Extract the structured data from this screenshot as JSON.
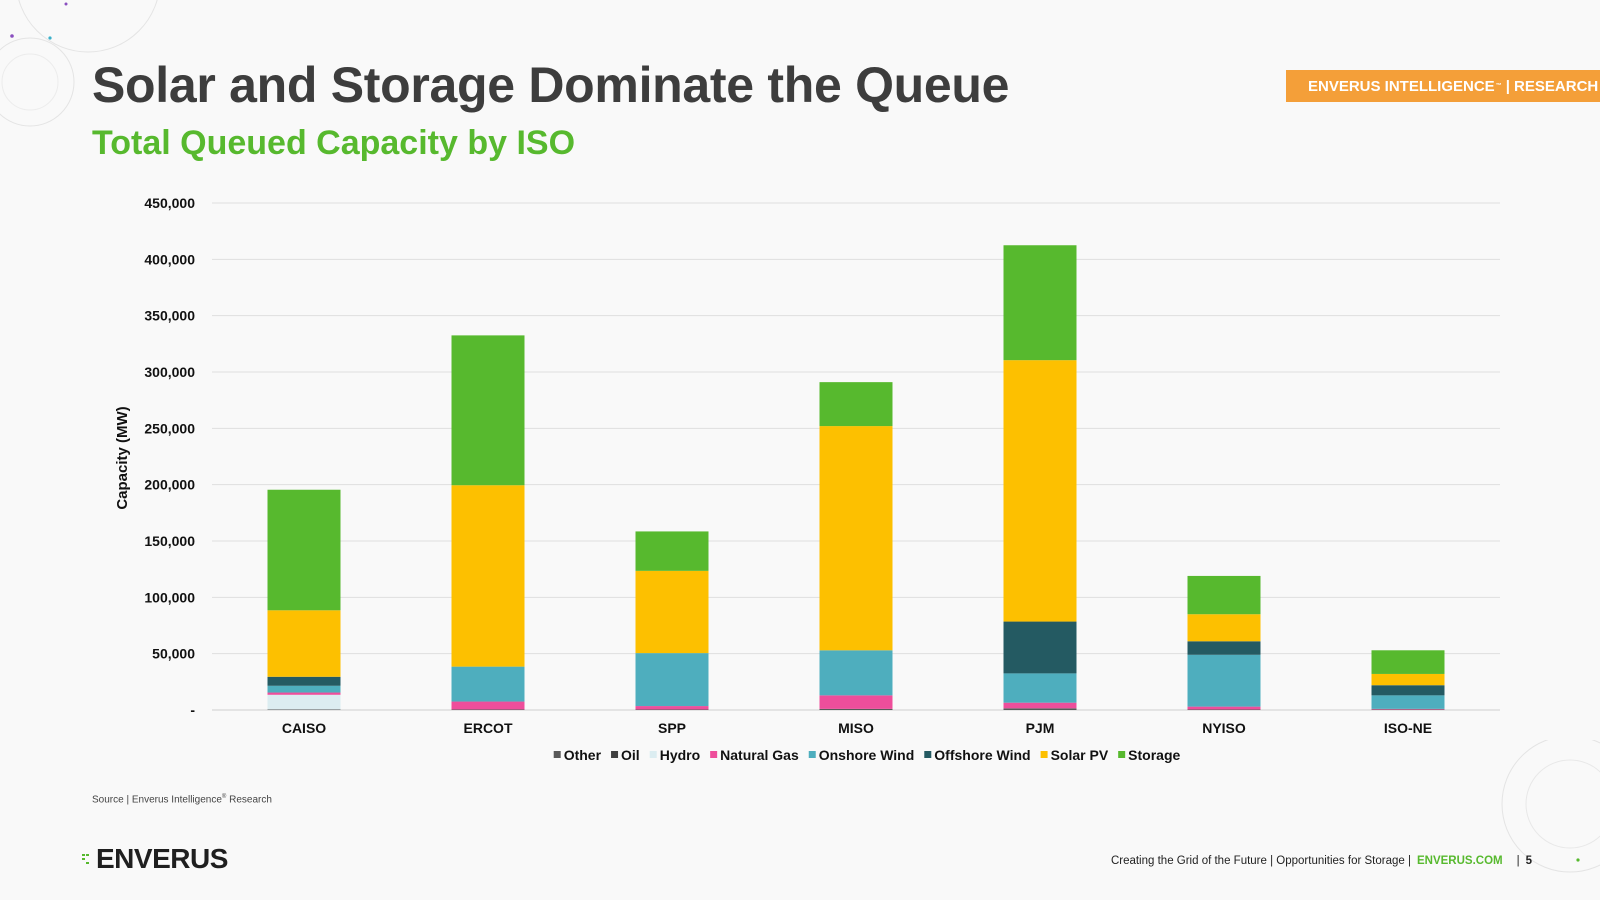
{
  "header": {
    "title": "Solar and Storage Dominate the Queue",
    "subtitle": "Total Queued Capacity by ISO",
    "badge_main": "ENVERUS INTELLIGENCE",
    "badge_mark": "™",
    "badge_suffix": "| RESEARCH"
  },
  "chart_data": {
    "type": "bar",
    "stacked": true,
    "ylabel": "Capacity (MW)",
    "ylim": [
      0,
      450000
    ],
    "yticks": [
      {
        "value": 0,
        "label": "-"
      },
      {
        "value": 50000,
        "label": "50,000"
      },
      {
        "value": 100000,
        "label": "100,000"
      },
      {
        "value": 150000,
        "label": "150,000"
      },
      {
        "value": 200000,
        "label": "200,000"
      },
      {
        "value": 250000,
        "label": "250,000"
      },
      {
        "value": 300000,
        "label": "300,000"
      },
      {
        "value": 350000,
        "label": "350,000"
      },
      {
        "value": 400000,
        "label": "400,000"
      },
      {
        "value": 450000,
        "label": "450,000"
      }
    ],
    "grid": true,
    "legend_position": "bottom",
    "categories": [
      "CAISO",
      "ERCOT",
      "SPP",
      "MISO",
      "PJM",
      "NYISO",
      "ISO-NE"
    ],
    "series": [
      {
        "name": "Other",
        "color": "#595959",
        "values": [
          500,
          500,
          500,
          1000,
          1000,
          500,
          300
        ]
      },
      {
        "name": "Oil",
        "color": "#404040",
        "values": [
          0,
          0,
          0,
          0,
          500,
          0,
          200
        ]
      },
      {
        "name": "Hydro",
        "color": "#dcedf1",
        "values": [
          13000,
          0,
          0,
          0,
          0,
          0,
          0
        ]
      },
      {
        "name": "Natural Gas",
        "color": "#ee4e9b",
        "values": [
          2000,
          7000,
          3000,
          12000,
          5000,
          2500,
          500
        ]
      },
      {
        "name": "Onshore Wind",
        "color": "#4eaebe",
        "values": [
          6000,
          31000,
          47000,
          40000,
          26000,
          46000,
          12000
        ]
      },
      {
        "name": "Offshore Wind",
        "color": "#245a62",
        "values": [
          8000,
          0,
          0,
          0,
          46000,
          12000,
          9000
        ]
      },
      {
        "name": "Solar PV",
        "color": "#fdc000",
        "values": [
          59000,
          161000,
          73000,
          199000,
          232000,
          24000,
          10000
        ]
      },
      {
        "name": "Storage",
        "color": "#57b92e",
        "values": [
          107000,
          133000,
          35000,
          39000,
          102000,
          34000,
          21000
        ]
      }
    ]
  },
  "source_prefix": "Source | Enverus Intelligence",
  "source_mark": "®",
  "source_suffix": " Research",
  "logo_text": "ENVERUS",
  "footer": {
    "deck_title": "Creating the Grid of the Future | Opportunities for Storage |",
    "link": "ENVERUS.COM",
    "separator": "|",
    "page_number": "5"
  }
}
